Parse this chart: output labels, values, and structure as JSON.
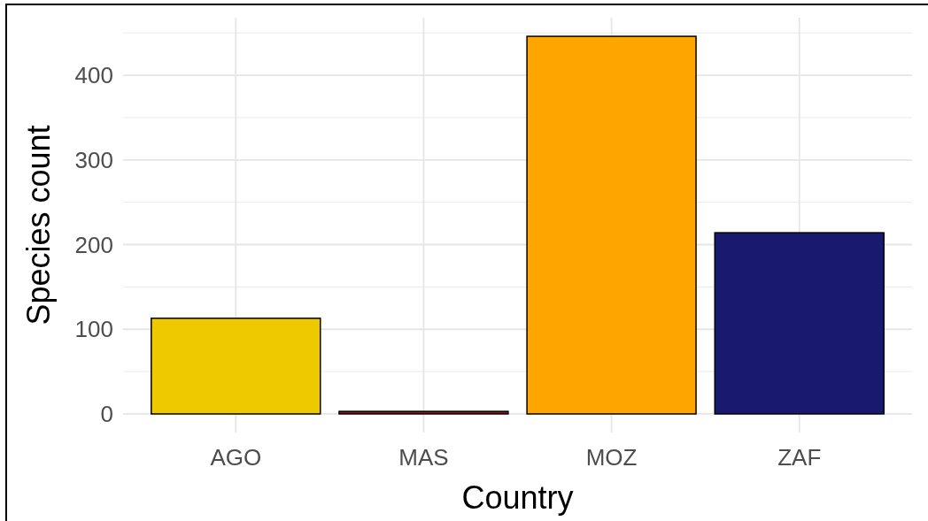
{
  "chart_data": {
    "type": "bar",
    "xlabel": "Country",
    "ylabel": "Species count",
    "categories": [
      "AGO",
      "MAS",
      "MOZ",
      "ZAF"
    ],
    "values": [
      113,
      3,
      446,
      214
    ],
    "colors": [
      "#eec900",
      "#8b1a1a",
      "#ffa500",
      "#191970"
    ],
    "ylim": [
      -22,
      468
    ],
    "yticks": [
      0,
      100,
      200,
      300,
      400
    ],
    "grid": true
  }
}
